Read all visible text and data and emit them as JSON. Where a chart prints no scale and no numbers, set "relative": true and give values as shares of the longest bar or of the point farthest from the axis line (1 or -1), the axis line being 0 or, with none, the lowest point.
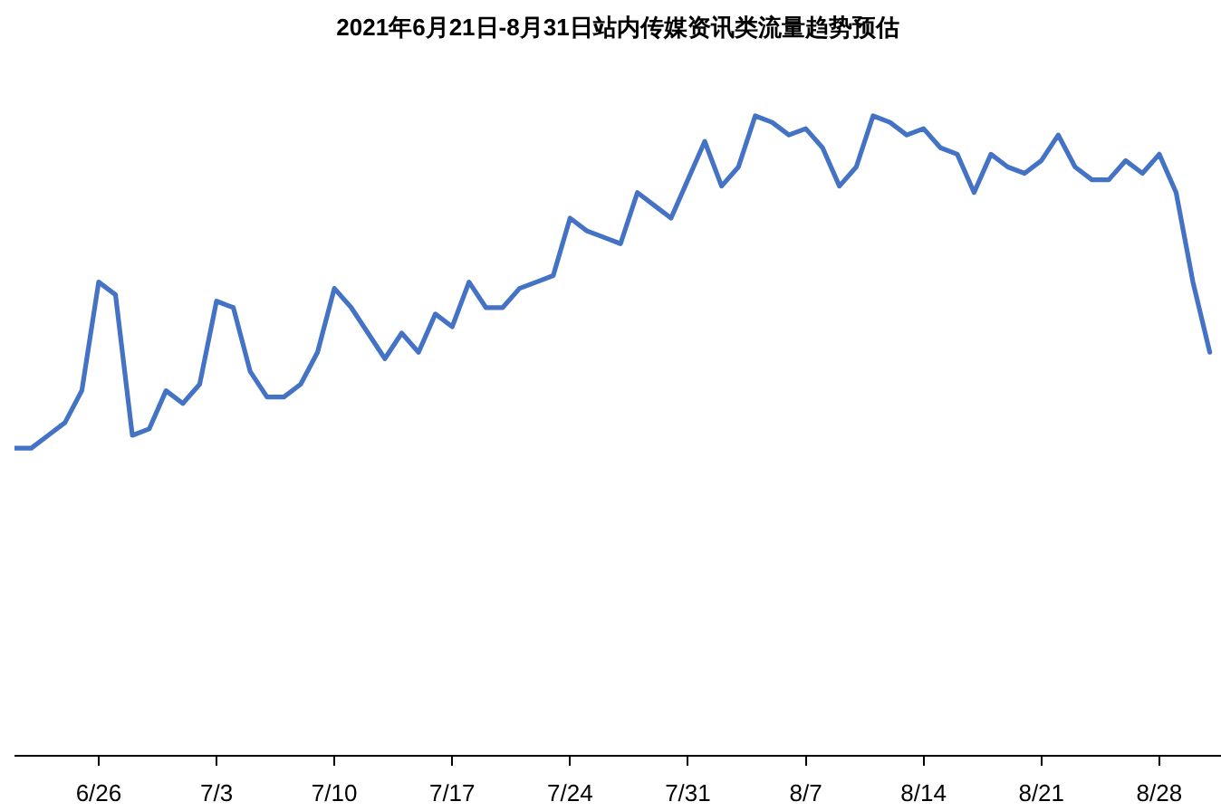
{
  "chart_data": {
    "type": "line",
    "title": "2021年6月21日-8月31日站内传媒资讯类流量趋势预估",
    "relative": true,
    "x": [
      "2021-06-21",
      "2021-06-22",
      "2021-06-23",
      "2021-06-24",
      "2021-06-25",
      "2021-06-26",
      "2021-06-27",
      "2021-06-28",
      "2021-06-29",
      "2021-06-30",
      "2021-07-01",
      "2021-07-02",
      "2021-07-03",
      "2021-07-04",
      "2021-07-05",
      "2021-07-06",
      "2021-07-07",
      "2021-07-08",
      "2021-07-09",
      "2021-07-10",
      "2021-07-11",
      "2021-07-12",
      "2021-07-13",
      "2021-07-14",
      "2021-07-15",
      "2021-07-16",
      "2021-07-17",
      "2021-07-18",
      "2021-07-19",
      "2021-07-20",
      "2021-07-21",
      "2021-07-22",
      "2021-07-23",
      "2021-07-24",
      "2021-07-25",
      "2021-07-26",
      "2021-07-27",
      "2021-07-28",
      "2021-07-29",
      "2021-07-30",
      "2021-07-31",
      "2021-08-01",
      "2021-08-02",
      "2021-08-03",
      "2021-08-04",
      "2021-08-05",
      "2021-08-06",
      "2021-08-07",
      "2021-08-08",
      "2021-08-09",
      "2021-08-10",
      "2021-08-11",
      "2021-08-12",
      "2021-08-13",
      "2021-08-14",
      "2021-08-15",
      "2021-08-16",
      "2021-08-17",
      "2021-08-18",
      "2021-08-19",
      "2021-08-20",
      "2021-08-21",
      "2021-08-22",
      "2021-08-23",
      "2021-08-24",
      "2021-08-25",
      "2021-08-26",
      "2021-08-27",
      "2021-08-28",
      "2021-08-29",
      "2021-08-30",
      "2021-08-31"
    ],
    "series": [
      {
        "color": "#4472c4",
        "values": [
          0.48,
          0.48,
          0.5,
          0.52,
          0.57,
          0.74,
          0.72,
          0.5,
          0.51,
          0.57,
          0.55,
          0.58,
          0.71,
          0.7,
          0.6,
          0.56,
          0.56,
          0.58,
          0.63,
          0.73,
          0.7,
          0.66,
          0.62,
          0.66,
          0.63,
          0.69,
          0.67,
          0.74,
          0.7,
          0.7,
          0.73,
          0.74,
          0.75,
          0.84,
          0.82,
          0.81,
          0.8,
          0.88,
          0.86,
          0.84,
          0.9,
          0.96,
          0.89,
          0.92,
          1.0,
          0.99,
          0.97,
          0.98,
          0.95,
          0.89,
          0.92,
          1.0,
          0.99,
          0.97,
          0.98,
          0.95,
          0.94,
          0.88,
          0.94,
          0.92,
          0.91,
          0.93,
          0.97,
          0.92,
          0.9,
          0.9,
          0.93,
          0.91,
          0.94,
          0.88,
          0.74,
          0.63
        ]
      }
    ],
    "xlim": [
      "2021-06-21",
      "2021-08-31T16:00"
    ],
    "xticks": [
      {
        "value": "2021-06-26",
        "label": "6/26"
      },
      {
        "value": "2021-07-03",
        "label": "7/3"
      },
      {
        "value": "2021-07-10",
        "label": "7/10"
      },
      {
        "value": "2021-07-17",
        "label": "7/17"
      },
      {
        "value": "2021-07-24",
        "label": "7/24"
      },
      {
        "value": "2021-07-31",
        "label": "7/31"
      },
      {
        "value": "2021-08-07",
        "label": "8/7"
      },
      {
        "value": "2021-08-14",
        "label": "8/14"
      },
      {
        "value": "2021-08-21",
        "label": "8/21"
      },
      {
        "value": "2021-08-28",
        "label": "8/28"
      }
    ]
  }
}
